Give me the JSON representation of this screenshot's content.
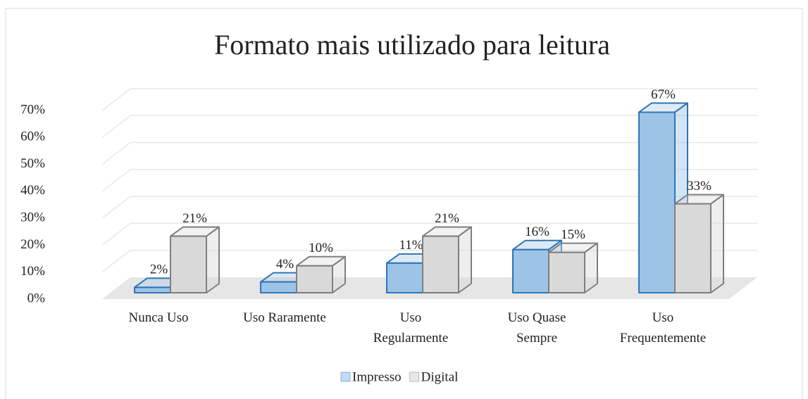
{
  "chart_data": {
    "type": "bar3d",
    "title": "Formato mais utilizado para leitura",
    "categories": [
      "Nunca Uso",
      "Uso Raramente",
      "Uso Regularmente",
      "Uso Quase Sempre",
      "Uso Frequentemente"
    ],
    "series": [
      {
        "name": "Impresso",
        "color": "#9dc3e6",
        "edgecolor": "#2e75b6",
        "values": [
          2,
          4,
          11,
          16,
          67
        ],
        "value_labels": [
          "2%",
          "4%",
          "11%",
          "16%",
          "67%"
        ]
      },
      {
        "name": "Digital",
        "color": "#d9d9d9",
        "edgecolor": "#7f7f7f",
        "values": [
          21,
          10,
          21,
          15,
          33
        ],
        "value_labels": [
          "21%",
          "10%",
          "21%",
          "15%",
          "33%"
        ]
      }
    ],
    "ylim": [
      0,
      70
    ],
    "yticks": [
      {
        "value": 0,
        "label": "0%"
      },
      {
        "value": 10,
        "label": "10%"
      },
      {
        "value": 20,
        "label": "20%"
      },
      {
        "value": 30,
        "label": "30%"
      },
      {
        "value": 40,
        "label": "40%"
      },
      {
        "value": 50,
        "label": "50%"
      },
      {
        "value": 60,
        "label": "60%"
      },
      {
        "value": 70,
        "label": "70%"
      }
    ],
    "grid": true,
    "legend": "bottom"
  }
}
